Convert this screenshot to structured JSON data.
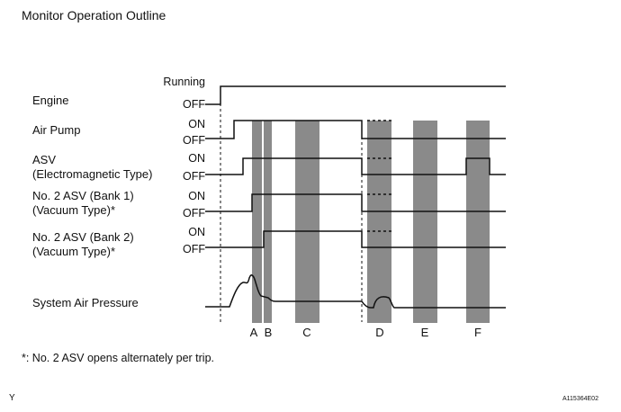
{
  "title": "Monitor Operation Outline",
  "signals": [
    {
      "label": "Engine",
      "states": [
        "Running",
        "OFF"
      ]
    },
    {
      "label": "Air Pump",
      "states": [
        "ON",
        "OFF"
      ]
    },
    {
      "label": "ASV\n(Electromagnetic Type)",
      "states": [
        "ON",
        "OFF"
      ]
    },
    {
      "label": "No. 2 ASV (Bank 1)\n(Vacuum Type)*",
      "states": [
        "ON",
        "OFF"
      ]
    },
    {
      "label": "No. 2 ASV (Bank 2)\n(Vacuum Type)*",
      "states": [
        "ON",
        "OFF"
      ]
    },
    {
      "label": "System Air Pressure",
      "states": []
    }
  ],
  "phases": [
    "A",
    "B",
    "C",
    "D",
    "E",
    "F"
  ],
  "footnote": "*: No. 2 ASV opens alternately per trip.",
  "corner_mark": "Y",
  "figure_code": "A115364E02",
  "colors": {
    "shade": "#8a8a8a",
    "line": "#111111"
  }
}
